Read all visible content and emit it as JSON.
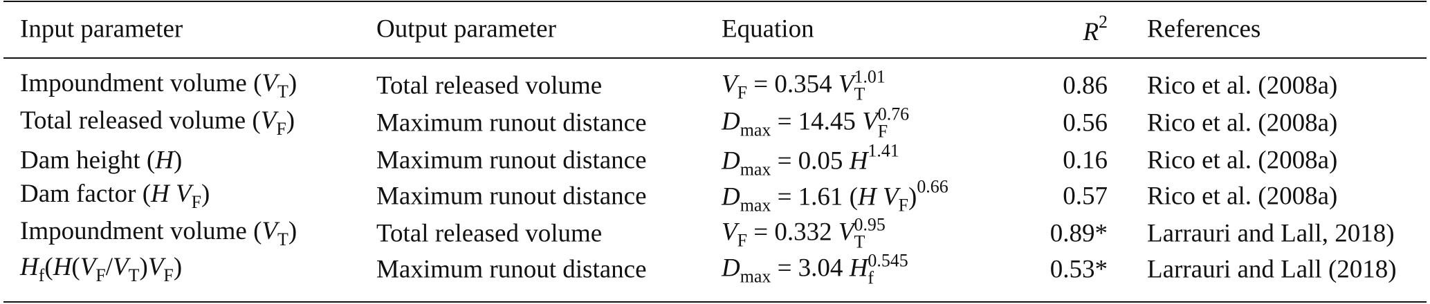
{
  "table": {
    "header": [
      [
        "Input parameter"
      ],
      [
        "Output parameter"
      ],
      [
        "Equation"
      ],
      [
        {
          "text": "R",
          "style": "i"
        },
        {
          "text": "2",
          "style": "sup"
        }
      ],
      [
        "References"
      ]
    ],
    "rows": [
      [
        [
          "Impoundment volume (",
          {
            "text": "V",
            "style": "i"
          },
          {
            "text": "T",
            "style": "sub"
          },
          ")"
        ],
        [
          "Total released volume"
        ],
        [
          {
            "text": "V",
            "style": "i"
          },
          {
            "text": "F",
            "style": "sub"
          },
          " = 0.354 ",
          {
            "text": "V",
            "style": "i"
          },
          {
            "style": "subsup",
            "sub": "T",
            "sup": "1.01"
          }
        ],
        [
          "0.86"
        ],
        [
          "Rico et al. (2008a)"
        ]
      ],
      [
        [
          "Total released volume (",
          {
            "text": "V",
            "style": "i"
          },
          {
            "text": "F",
            "style": "sub"
          },
          ")"
        ],
        [
          "Maximum runout distance"
        ],
        [
          {
            "text": "D",
            "style": "i"
          },
          {
            "text": "max",
            "style": "sub"
          },
          " = 14.45 ",
          {
            "text": "V",
            "style": "i"
          },
          {
            "style": "subsup",
            "sub": "F",
            "sup": "0.76"
          }
        ],
        [
          "0.56"
        ],
        [
          "Rico et al. (2008a)"
        ]
      ],
      [
        [
          "Dam height (",
          {
            "text": "H",
            "style": "i"
          },
          ")"
        ],
        [
          "Maximum runout distance"
        ],
        [
          {
            "text": "D",
            "style": "i"
          },
          {
            "text": "max",
            "style": "sub"
          },
          " = 0.05 ",
          {
            "text": "H",
            "style": "i"
          },
          {
            "text": "1.41",
            "style": "sup"
          }
        ],
        [
          "0.16"
        ],
        [
          "Rico et al. (2008a)"
        ]
      ],
      [
        [
          "Dam factor (",
          {
            "text": "H V",
            "style": "i"
          },
          {
            "text": "F",
            "style": "sub"
          },
          ")"
        ],
        [
          "Maximum runout distance"
        ],
        [
          {
            "text": "D",
            "style": "i"
          },
          {
            "text": "max",
            "style": "sub"
          },
          " = 1.61 (",
          {
            "text": "H V",
            "style": "i"
          },
          {
            "text": "F",
            "style": "sub"
          },
          ")",
          {
            "text": "0.66",
            "style": "sup"
          }
        ],
        [
          "0.57"
        ],
        [
          "Rico et al. (2008a)"
        ]
      ],
      [
        [
          "Impoundment volume (",
          {
            "text": "V",
            "style": "i"
          },
          {
            "text": "T",
            "style": "sub"
          },
          ")"
        ],
        [
          "Total released volume"
        ],
        [
          {
            "text": "V",
            "style": "i"
          },
          {
            "text": "F",
            "style": "sub"
          },
          " = 0.332 ",
          {
            "text": "V",
            "style": "i"
          },
          {
            "style": "subsup",
            "sub": "T",
            "sup": "0.95"
          }
        ],
        [
          "0.89*"
        ],
        [
          "Larrauri and Lall, 2018)"
        ]
      ],
      [
        [
          {
            "text": "H",
            "style": "i"
          },
          {
            "text": "f",
            "style": "sub"
          },
          "(",
          {
            "text": "H",
            "style": "i"
          },
          "(",
          {
            "text": "V",
            "style": "i"
          },
          {
            "text": "F",
            "style": "sub"
          },
          "/",
          {
            "text": "V",
            "style": "i"
          },
          {
            "text": "T",
            "style": "sub"
          },
          ")",
          {
            "text": "V",
            "style": "i"
          },
          {
            "text": "F",
            "style": "sub"
          },
          ")"
        ],
        [
          "Maximum runout distance"
        ],
        [
          {
            "text": "D",
            "style": "i"
          },
          {
            "text": "max",
            "style": "sub"
          },
          " = 3.04 ",
          {
            "text": "H",
            "style": "i"
          },
          {
            "style": "subsup",
            "sub": "f",
            "sup": "0.545"
          }
        ],
        [
          "0.53*"
        ],
        [
          "Larrauri and Lall (2018)"
        ]
      ]
    ]
  }
}
